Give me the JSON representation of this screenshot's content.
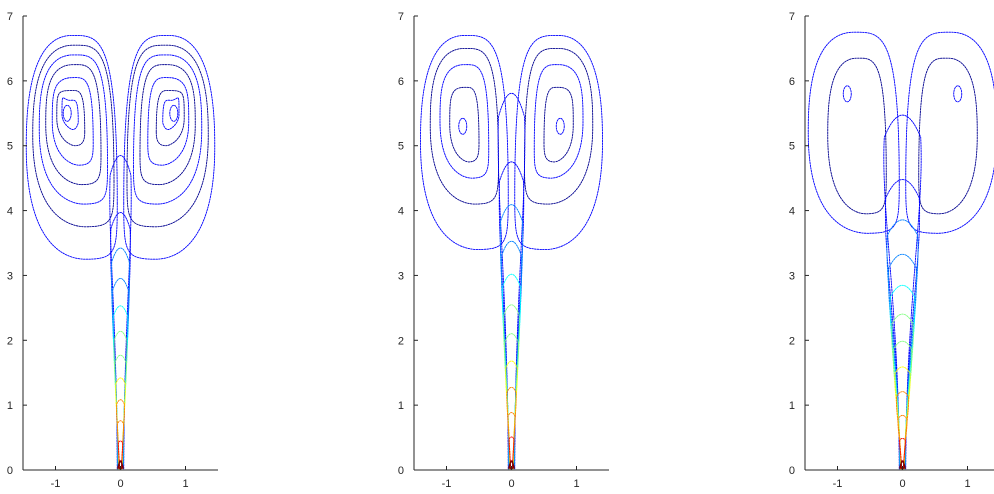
{
  "colors": {
    "axis": "#262626",
    "colormap": [
      "#00008f",
      "#0000ff",
      "#0080ff",
      "#00ffff",
      "#80ff80",
      "#ffff00",
      "#ff8000",
      "#ff0000",
      "#800000"
    ]
  },
  "chart_data": [
    {
      "type": "contour",
      "panel": "left",
      "xlim": [
        -1.5,
        1.5
      ],
      "ylim": [
        0,
        7
      ],
      "xticks": [
        -1,
        0,
        1
      ],
      "yticks": [
        0,
        1,
        2,
        3,
        4,
        5,
        6,
        7
      ],
      "xtick_labels": [
        "-1",
        "0",
        "1"
      ],
      "ytick_labels": [
        "0",
        "1",
        "2",
        "3",
        "4",
        "5",
        "6",
        "7"
      ],
      "jet": {
        "half_width_base": 0.05,
        "half_width_top": 0.16,
        "top": 5.05,
        "color_levels": 12
      },
      "vortex_centers": [
        [
          -0.82,
          5.5
        ],
        [
          0.82,
          5.5
        ]
      ],
      "outer_loops": [
        {
          "inner": 0.05,
          "top": 6.7,
          "outer": 1.45,
          "bottom": 3.25
        },
        {
          "inner": 0.1,
          "top": 6.55,
          "outer": 1.35,
          "bottom": 3.75
        },
        {
          "inner": 0.2,
          "top": 6.4,
          "outer": 1.25,
          "bottom": 4.1
        },
        {
          "inner": 0.3,
          "top": 6.25,
          "outer": 1.15,
          "bottom": 4.4
        },
        {
          "inner": 0.42,
          "top": 6.05,
          "outer": 1.05,
          "bottom": 4.7
        },
        {
          "inner": 0.55,
          "top": 5.85,
          "outer": 0.98,
          "bottom": 5.0
        },
        {
          "inner": 0.65,
          "top": 5.7,
          "outer": 0.9,
          "bottom": 5.25
        }
      ]
    },
    {
      "type": "contour",
      "panel": "middle",
      "xlim": [
        -1.5,
        1.5
      ],
      "ylim": [
        0,
        7
      ],
      "xticks": [
        -1,
        0,
        1
      ],
      "yticks": [
        0,
        1,
        2,
        3,
        4,
        5,
        6,
        7
      ],
      "xtick_labels": [
        "-1",
        "0",
        "1"
      ],
      "ytick_labels": [
        "0",
        "1",
        "2",
        "3",
        "4",
        "5",
        "6",
        "7"
      ],
      "jet": {
        "half_width_base": 0.05,
        "half_width_top": 0.2,
        "top": 6.05,
        "color_levels": 12
      },
      "vortex_centers": [
        [
          -0.75,
          5.3
        ],
        [
          0.75,
          5.3
        ]
      ],
      "outer_loops": [
        {
          "inner": 0.05,
          "top": 6.7,
          "outer": 1.4,
          "bottom": 3.4
        },
        {
          "inner": 0.2,
          "top": 6.5,
          "outer": 1.25,
          "bottom": 4.1
        },
        {
          "inner": 0.35,
          "top": 6.25,
          "outer": 1.1,
          "bottom": 4.5
        },
        {
          "inner": 0.5,
          "top": 5.9,
          "outer": 0.95,
          "bottom": 4.75
        }
      ]
    },
    {
      "type": "contour",
      "panel": "right",
      "xlim": [
        -1.5,
        1.5
      ],
      "ylim": [
        0,
        7
      ],
      "xticks": [
        -1,
        0,
        1
      ],
      "yticks": [
        0,
        1,
        2,
        3,
        4,
        5,
        6,
        7
      ],
      "xtick_labels": [
        "-1",
        "0",
        "1"
      ],
      "ytick_labels": [
        "0",
        "1",
        "2",
        "3",
        "4",
        "5",
        "6",
        "7"
      ],
      "jet": {
        "half_width_base": 0.05,
        "half_width_top": 0.28,
        "top": 5.7,
        "color_levels": 12
      },
      "vortex_centers": [
        [
          -0.85,
          5.8
        ],
        [
          0.85,
          5.8
        ]
      ],
      "outer_loops": [
        {
          "inner": 0.05,
          "top": 6.75,
          "outer": 1.45,
          "bottom": 3.65
        },
        {
          "inner": 0.25,
          "top": 6.35,
          "outer": 1.15,
          "bottom": 3.95
        }
      ]
    }
  ]
}
